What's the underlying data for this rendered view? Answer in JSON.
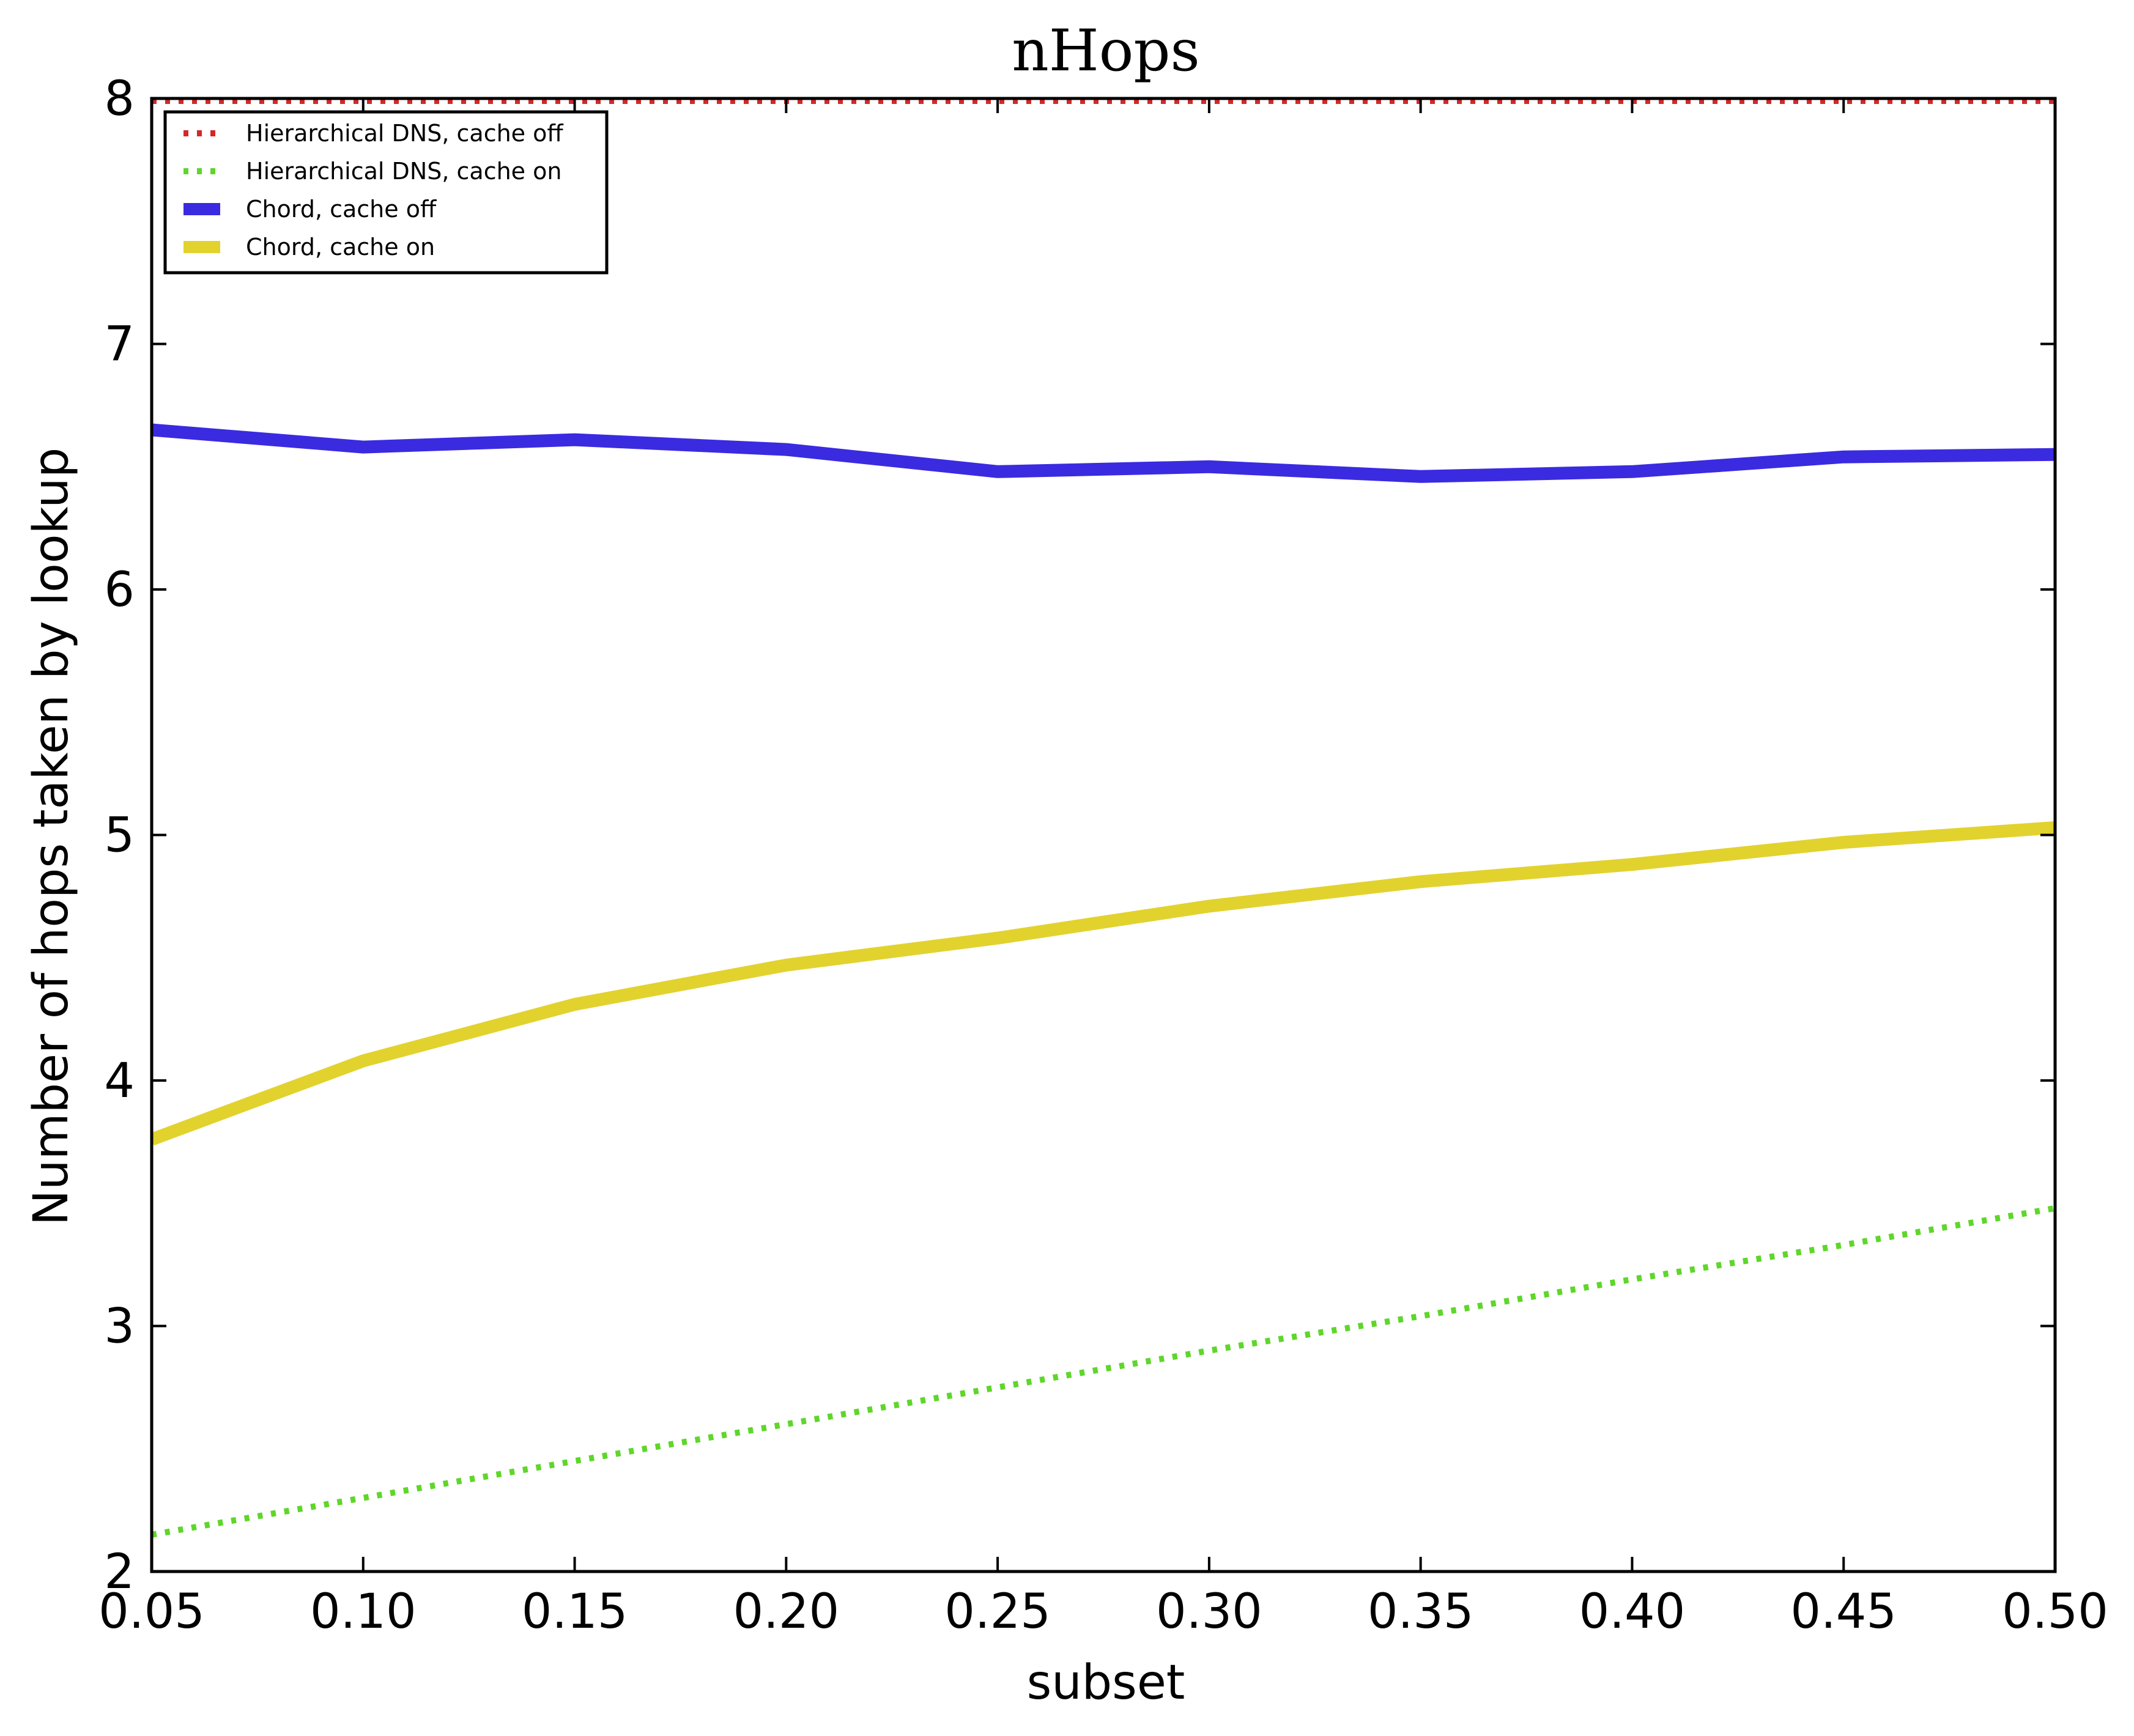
{
  "chart_data": {
    "type": "line",
    "title": "nHops",
    "xlabel": "subset",
    "ylabel": "Number of hops taken by lookup",
    "xlim": [
      0.05,
      0.5
    ],
    "ylim": [
      2,
      8
    ],
    "xticks": [
      "0.05",
      "0.10",
      "0.15",
      "0.20",
      "0.25",
      "0.30",
      "0.35",
      "0.40",
      "0.45",
      "0.50"
    ],
    "yticks": [
      "2",
      "3",
      "4",
      "5",
      "6",
      "7",
      "8"
    ],
    "grid": false,
    "legend_position": "top-left",
    "x": [
      0.05,
      0.1,
      0.15,
      0.2,
      0.25,
      0.3,
      0.35,
      0.4,
      0.45,
      0.5
    ],
    "series": [
      {
        "name": "Hierarchical DNS, cache off",
        "color": "#d62728",
        "style": "dotted",
        "values": [
          7.99,
          7.99,
          7.99,
          7.99,
          7.99,
          7.99,
          7.99,
          7.99,
          7.99,
          7.99
        ]
      },
      {
        "name": "Hierarchical DNS, cache on",
        "color": "#5fd62a",
        "style": "dotted",
        "values": [
          2.15,
          2.3,
          2.45,
          2.6,
          2.75,
          2.9,
          3.04,
          3.19,
          3.33,
          3.48
        ]
      },
      {
        "name": "Chord, cache off",
        "color": "#3a2be0",
        "style": "solid",
        "values": [
          6.65,
          6.58,
          6.61,
          6.57,
          6.48,
          6.5,
          6.46,
          6.48,
          6.54,
          6.55
        ]
      },
      {
        "name": "Chord, cache on",
        "color": "#e2d22e",
        "style": "solid",
        "values": [
          3.76,
          4.08,
          4.31,
          4.47,
          4.58,
          4.71,
          4.81,
          4.88,
          4.97,
          5.03
        ]
      }
    ]
  }
}
